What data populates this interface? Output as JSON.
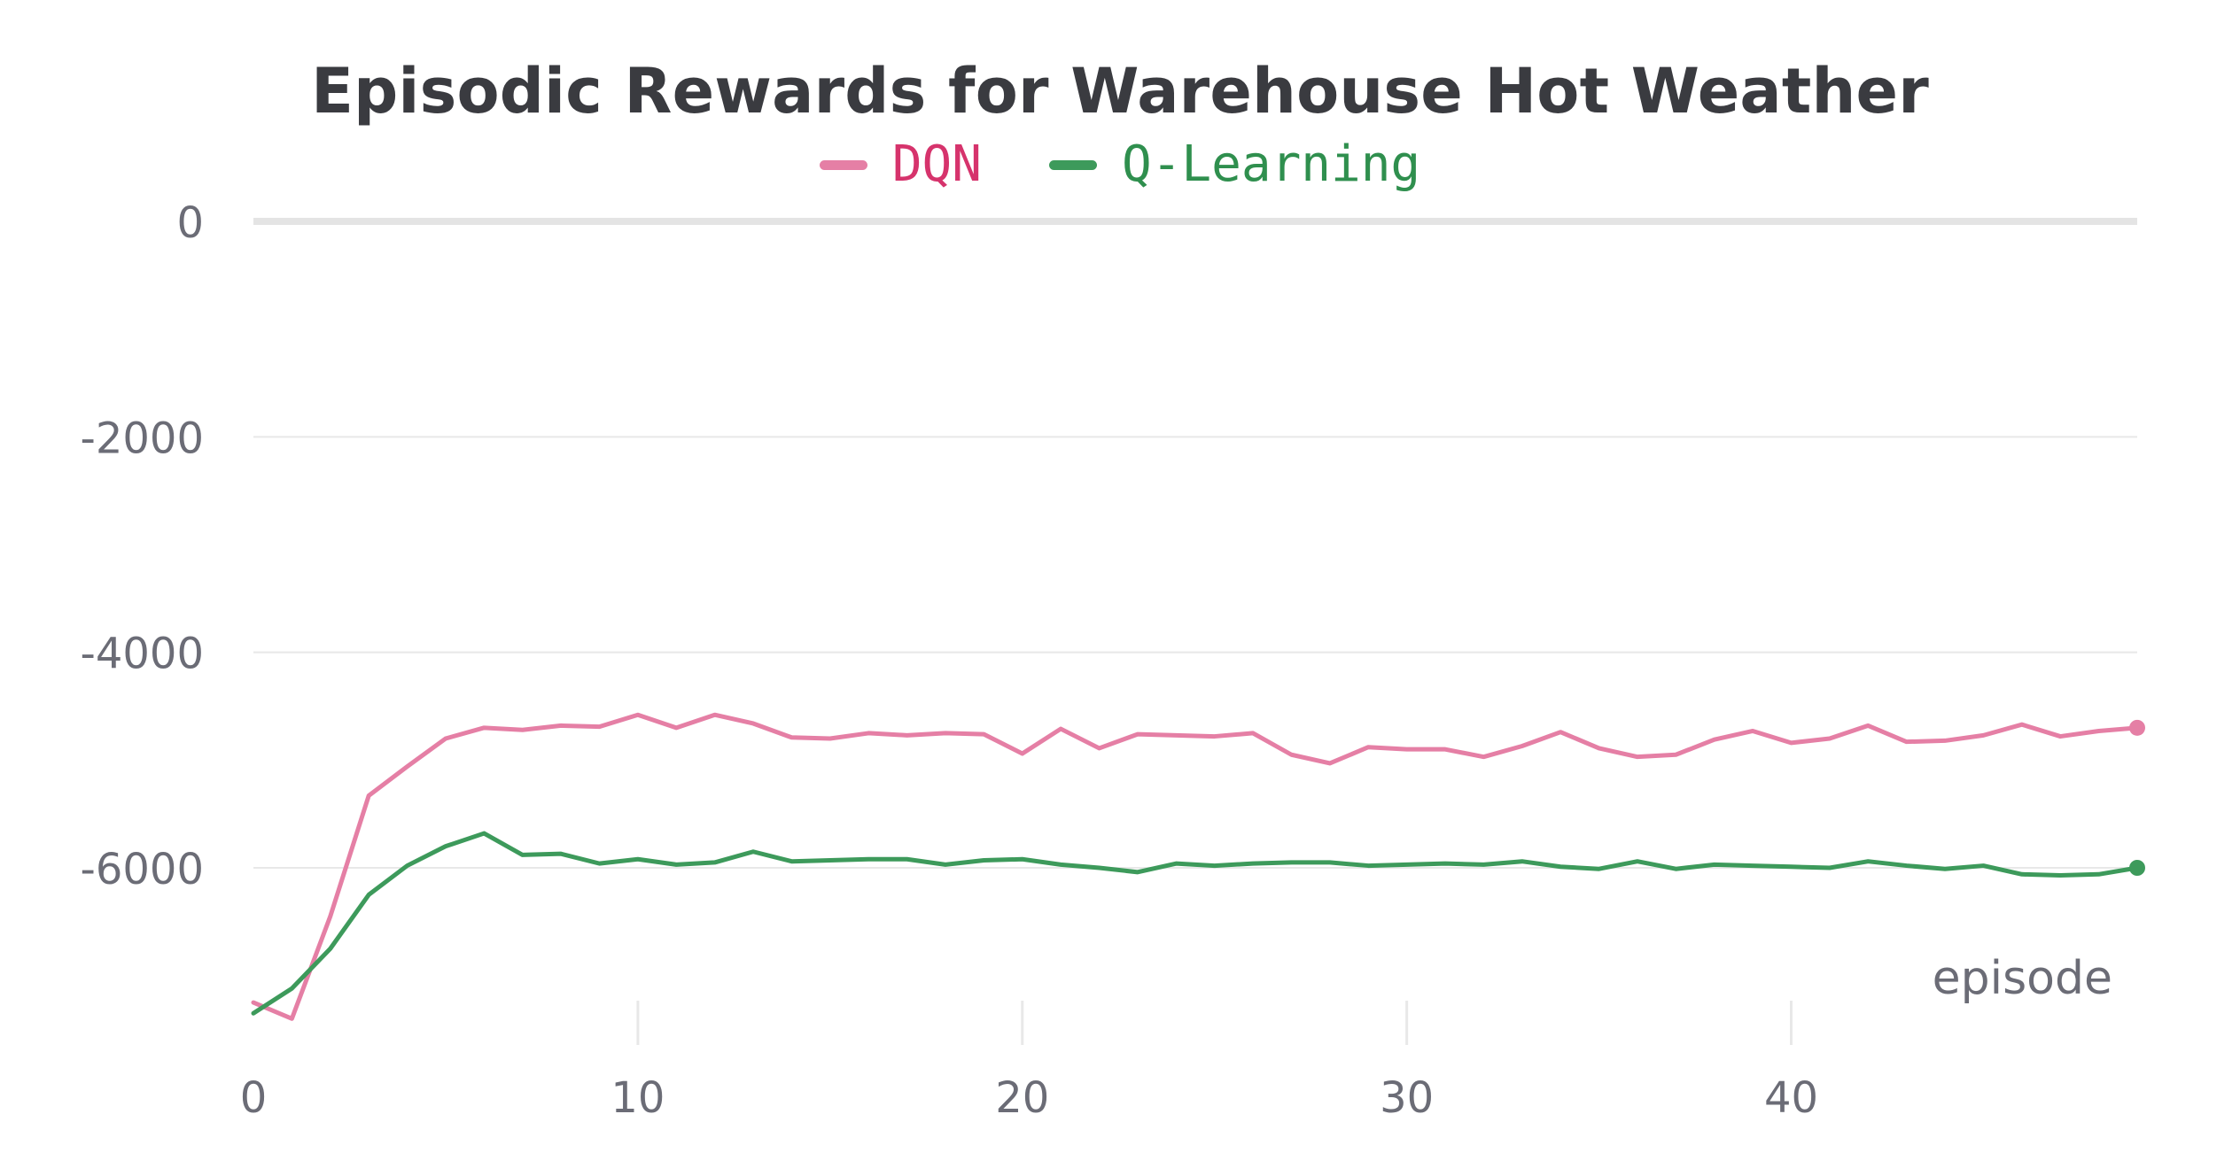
{
  "chart_data": {
    "type": "line",
    "title": "Episodic Rewards for Warehouse Hot Weather",
    "xlabel": "episode",
    "ylabel": "",
    "xlim": [
      0,
      49
    ],
    "ylim": [
      -7600,
      0
    ],
    "x_ticks": [
      0,
      10,
      20,
      30,
      40
    ],
    "y_ticks": [
      0,
      -2000,
      -4000,
      -6000
    ],
    "x_tick_labels": [
      "0",
      "10",
      "20",
      "30",
      "40"
    ],
    "y_tick_labels": [
      "0",
      "-2000",
      "-4000",
      "-6000"
    ],
    "grid": true,
    "legend_position": "top-center",
    "colors": {
      "DQN": "#e57fa5",
      "Q-Learning": "#3d9a5b",
      "title": "#3a3b40",
      "axis_text": "#6b6c76",
      "grid": "#e8e8e8",
      "zero_line": "#e4e4e4"
    },
    "legend_text_colors": {
      "DQN": "#d6336c",
      "Q-Learning": "#2f8f4e"
    },
    "series": [
      {
        "name": "DQN",
        "x": [
          0,
          1,
          2,
          3,
          4,
          5,
          6,
          7,
          8,
          9,
          10,
          11,
          12,
          13,
          14,
          15,
          16,
          17,
          18,
          19,
          20,
          21,
          22,
          23,
          24,
          25,
          26,
          27,
          28,
          29,
          30,
          31,
          32,
          33,
          34,
          35,
          36,
          37,
          38,
          39,
          40,
          41,
          42,
          43,
          44,
          45,
          46,
          47,
          48,
          49
        ],
        "values": [
          -7250,
          -7400,
          -6450,
          -5330,
          -5060,
          -4800,
          -4700,
          -4720,
          -4680,
          -4690,
          -4580,
          -4700,
          -4580,
          -4660,
          -4790,
          -4800,
          -4750,
          -4770,
          -4750,
          -4760,
          -4940,
          -4710,
          -4890,
          -4760,
          -4770,
          -4780,
          -4750,
          -4950,
          -5030,
          -4880,
          -4900,
          -4900,
          -4970,
          -4870,
          -4740,
          -4890,
          -4970,
          -4950,
          -4810,
          -4730,
          -4840,
          -4800,
          -4680,
          -4830,
          -4820,
          -4770,
          -4670,
          -4780,
          -4730,
          -4700
        ]
      },
      {
        "name": "Q-Learning",
        "x": [
          0,
          1,
          2,
          3,
          4,
          5,
          6,
          7,
          8,
          9,
          10,
          11,
          12,
          13,
          14,
          15,
          16,
          17,
          18,
          19,
          20,
          21,
          22,
          23,
          24,
          25,
          26,
          27,
          28,
          29,
          30,
          31,
          32,
          33,
          34,
          35,
          36,
          37,
          38,
          39,
          40,
          41,
          42,
          43,
          44,
          45,
          46,
          47,
          48,
          49
        ],
        "values": [
          -7350,
          -7120,
          -6750,
          -6250,
          -5980,
          -5800,
          -5680,
          -5880,
          -5870,
          -5960,
          -5920,
          -5970,
          -5950,
          -5850,
          -5940,
          -5930,
          -5920,
          -5920,
          -5970,
          -5930,
          -5920,
          -5970,
          -6000,
          -6040,
          -5960,
          -5980,
          -5960,
          -5950,
          -5950,
          -5980,
          -5970,
          -5960,
          -5970,
          -5940,
          -5990,
          -6010,
          -5940,
          -6010,
          -5970,
          -5980,
          -5990,
          -6000,
          -5940,
          -5980,
          -6010,
          -5980,
          -6060,
          -6070,
          -6060,
          -6000
        ]
      }
    ]
  }
}
